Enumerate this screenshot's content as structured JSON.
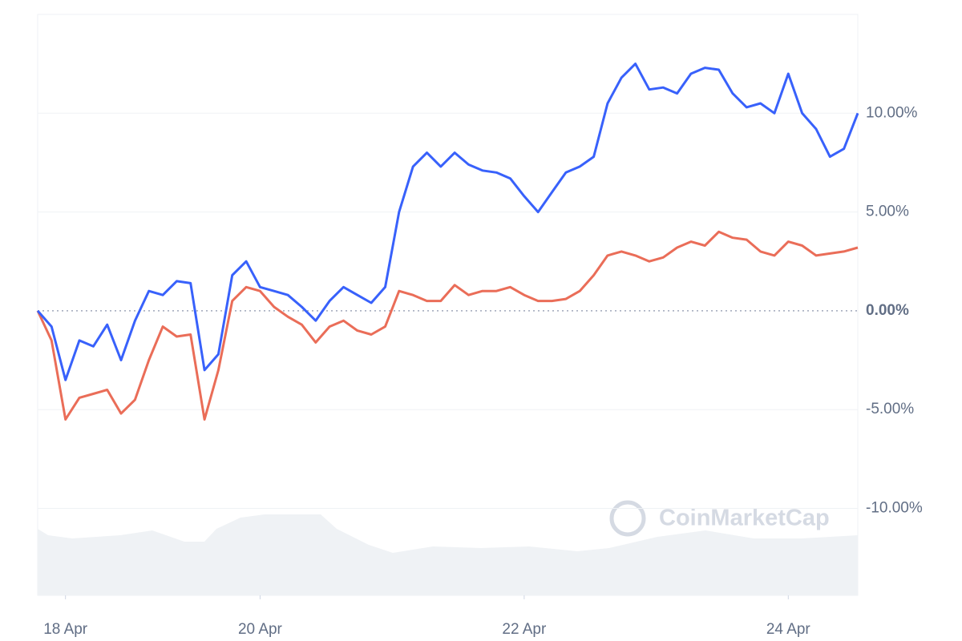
{
  "chart_data": {
    "type": "line",
    "x": [
      null,
      null,
      "18 Apr",
      null,
      null,
      null,
      null,
      null,
      null,
      null,
      null,
      null,
      null,
      null,
      null,
      null,
      "20 Apr",
      null,
      null,
      null,
      null,
      null,
      null,
      null,
      null,
      null,
      null,
      null,
      null,
      null,
      null,
      null,
      null,
      null,
      null,
      "22 Apr",
      null,
      null,
      null,
      null,
      null,
      null,
      null,
      null,
      null,
      null,
      null,
      null,
      null,
      null,
      null,
      null,
      null,
      null,
      "24 Apr",
      null,
      null,
      null,
      null,
      null
    ],
    "series": [
      {
        "color": "#3861fb",
        "values": [
          0,
          -0.8,
          -3.5,
          -1.5,
          -1.8,
          -0.7,
          -2.5,
          -0.5,
          1.0,
          0.8,
          1.5,
          1.4,
          -3.0,
          -2.2,
          1.8,
          2.5,
          1.2,
          1.0,
          0.8,
          0.2,
          -0.5,
          0.5,
          1.2,
          0.8,
          0.4,
          1.2,
          5.0,
          7.3,
          8.0,
          7.3,
          8.0,
          7.4,
          7.1,
          7.0,
          6.7,
          5.8,
          5.0,
          6.0,
          7.0,
          7.3,
          7.8,
          10.5,
          11.8,
          12.5,
          11.2,
          11.3,
          11.0,
          12.0,
          12.3,
          12.2,
          11.0,
          10.3,
          10.5,
          10.0,
          12.0,
          10.0,
          9.2,
          7.8,
          8.2,
          10.0
        ]
      },
      {
        "color": "#ea6d58",
        "values": [
          0,
          -1.5,
          -5.5,
          -4.4,
          -4.2,
          -4.0,
          -5.2,
          -4.5,
          -2.5,
          -0.8,
          -1.3,
          -1.2,
          -5.5,
          -3.0,
          0.5,
          1.2,
          1.0,
          0.2,
          -0.3,
          -0.7,
          -1.6,
          -0.8,
          -0.5,
          -1.0,
          -1.2,
          -0.8,
          1.0,
          0.8,
          0.5,
          0.5,
          1.3,
          0.8,
          1.0,
          1.0,
          1.2,
          0.8,
          0.5,
          0.5,
          0.6,
          1.0,
          1.8,
          2.8,
          3.0,
          2.8,
          2.5,
          2.7,
          3.2,
          3.5,
          3.3,
          4.0,
          3.7,
          3.6,
          3.0,
          2.8,
          3.5,
          3.3,
          2.8,
          2.9,
          3.0,
          3.2
        ]
      }
    ],
    "ylim": [
      -14.4,
      15.0
    ],
    "yticks": [
      {
        "value": -10,
        "label": "-10.00%"
      },
      {
        "value": -5,
        "label": "-5.00%"
      },
      {
        "value": 0,
        "label": "0.00%"
      },
      {
        "value": 5,
        "label": "5.00%"
      },
      {
        "value": 10,
        "label": "10.00%"
      }
    ],
    "grid": true,
    "watermark": "CoinMarketCap"
  }
}
